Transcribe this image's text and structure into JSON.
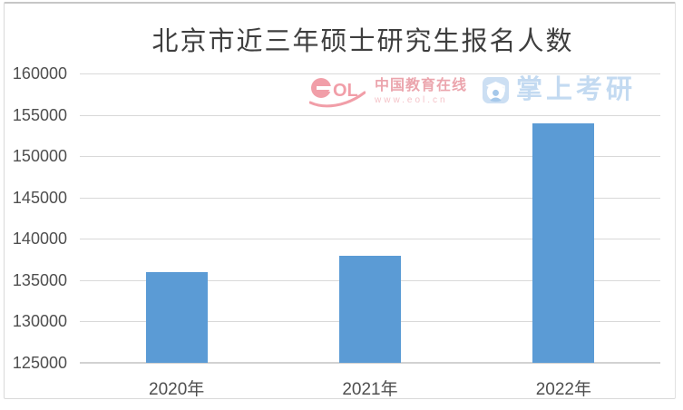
{
  "chart_data": {
    "type": "bar",
    "title": "北京市近三年硕士研究生报名人数",
    "categories": [
      "2020年",
      "2021年",
      "2022年"
    ],
    "values": [
      136000,
      138000,
      154000
    ],
    "xlabel": "",
    "ylabel": "",
    "ylim": [
      125000,
      160000
    ],
    "yticks": [
      125000,
      130000,
      135000,
      140000,
      145000,
      150000,
      155000,
      160000
    ],
    "grid": true,
    "legend": false,
    "bar_color": "#5b9bd5",
    "gridline_color": "#d9d9d9",
    "axis_color": "#d2d2d2",
    "tick_label_color": "#4f4f4f",
    "title_color": "#3f3f3f"
  },
  "watermarks": {
    "eol": {
      "icon": "eol-logo-icon",
      "logo_ol": "OL",
      "name": "中国教育在线",
      "url": "www.eol.cn",
      "color": "#ee8793"
    },
    "zsky": {
      "icon": "graduation-cap-icon",
      "text": "掌上考研",
      "color": "#bdd7f0"
    }
  }
}
